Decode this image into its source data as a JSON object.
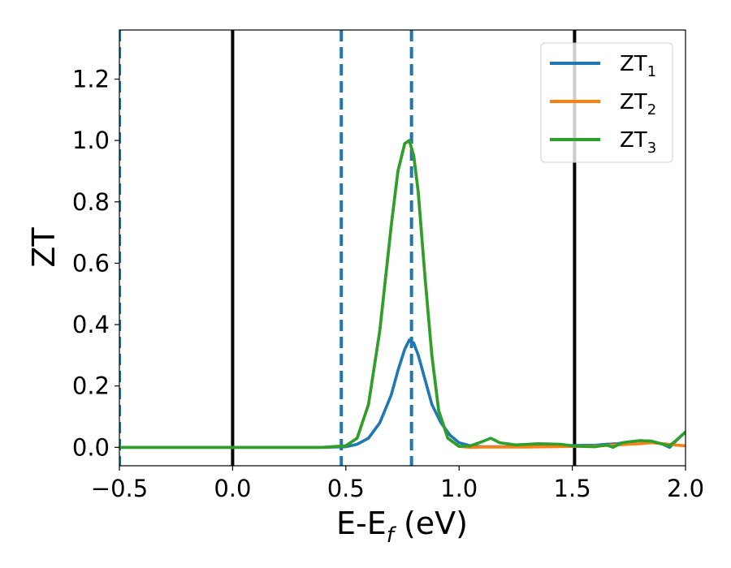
{
  "chart_data": {
    "type": "line",
    "xlabel": "E-E",
    "xlabel_sub": "f",
    "xlabel_unit": " (eV)",
    "ylabel": "ZT",
    "xlim": [
      -0.5,
      2.0
    ],
    "ylim": [
      -0.06,
      1.36
    ],
    "xticks": [
      -0.5,
      0.0,
      0.5,
      1.0,
      1.5,
      2.0
    ],
    "xtick_labels": [
      "−0.5",
      "0.0",
      "0.5",
      "1.0",
      "1.5",
      "2.0"
    ],
    "yticks": [
      0.0,
      0.2,
      0.4,
      0.6,
      0.8,
      1.0,
      1.2
    ],
    "ytick_labels": [
      "0.0",
      "0.2",
      "0.4",
      "0.6",
      "0.8",
      "1.0",
      "1.2"
    ],
    "legend_position": "top-right",
    "vlines": [
      {
        "x": -0.5,
        "style": "dashed",
        "color": "#1f77b4"
      },
      {
        "x": 0.0,
        "style": "solid",
        "color": "#000000"
      },
      {
        "x": 0.48,
        "style": "dashed",
        "color": "#1f77b4"
      },
      {
        "x": 0.79,
        "style": "dashed",
        "color": "#1f77b4"
      },
      {
        "x": 1.51,
        "style": "solid",
        "color": "#000000"
      }
    ],
    "series": [
      {
        "name": "ZT",
        "name_sub": "1",
        "color": "#1f77b4",
        "x": [
          -0.5,
          0.4,
          0.5,
          0.55,
          0.6,
          0.65,
          0.7,
          0.73,
          0.76,
          0.78,
          0.8,
          0.82,
          0.85,
          0.88,
          0.92,
          0.96,
          1.0,
          1.05,
          1.1,
          1.15,
          1.2,
          1.3,
          1.4,
          1.5,
          1.6,
          1.65,
          1.7,
          1.75,
          1.8,
          1.85,
          1.9,
          1.93,
          1.97,
          2.0
        ],
        "y": [
          0.0,
          0.0,
          0.002,
          0.01,
          0.03,
          0.08,
          0.17,
          0.25,
          0.32,
          0.35,
          0.34,
          0.3,
          0.22,
          0.14,
          0.08,
          0.04,
          0.015,
          0.005,
          0.002,
          0.002,
          0.002,
          0.003,
          0.005,
          0.006,
          0.007,
          0.01,
          0.012,
          0.018,
          0.022,
          0.02,
          0.01,
          0.0,
          0.03,
          0.05
        ]
      },
      {
        "name": "ZT",
        "name_sub": "2",
        "color": "#ff7f0e",
        "x": [
          -0.5,
          0.4,
          0.5,
          0.55,
          0.6,
          0.65,
          0.7,
          0.73,
          0.76,
          0.78,
          0.8,
          0.82,
          0.85,
          0.88,
          0.91,
          0.95,
          1.0,
          1.05,
          1.1,
          1.2,
          1.3,
          1.4,
          1.5,
          1.6,
          1.7,
          1.75,
          1.8,
          1.85,
          1.9,
          1.95,
          2.0
        ],
        "y": [
          0.0,
          0.0,
          0.005,
          0.03,
          0.14,
          0.38,
          0.72,
          0.9,
          0.99,
          1.0,
          0.95,
          0.83,
          0.55,
          0.3,
          0.12,
          0.03,
          0.003,
          0.0,
          0.001,
          0.001,
          0.001,
          0.002,
          0.003,
          0.004,
          0.008,
          0.01,
          0.012,
          0.015,
          0.012,
          0.008,
          0.005
        ]
      },
      {
        "name": "ZT",
        "name_sub": "3",
        "color": "#2ca02c",
        "x": [
          -0.5,
          0.4,
          0.5,
          0.55,
          0.6,
          0.65,
          0.7,
          0.73,
          0.76,
          0.78,
          0.8,
          0.82,
          0.85,
          0.88,
          0.91,
          0.95,
          1.0,
          1.05,
          1.1,
          1.14,
          1.18,
          1.25,
          1.35,
          1.45,
          1.5,
          1.55,
          1.6,
          1.65,
          1.68,
          1.72,
          1.75,
          1.8,
          1.85,
          1.9,
          1.93,
          1.97,
          2.0
        ],
        "y": [
          0.0,
          0.0,
          0.005,
          0.03,
          0.14,
          0.38,
          0.72,
          0.9,
          0.99,
          1.0,
          0.95,
          0.83,
          0.55,
          0.3,
          0.12,
          0.03,
          0.003,
          0.005,
          0.018,
          0.03,
          0.015,
          0.008,
          0.012,
          0.01,
          0.005,
          0.003,
          0.002,
          0.008,
          0.0,
          0.015,
          0.018,
          0.022,
          0.02,
          0.01,
          0.005,
          0.03,
          0.05
        ]
      }
    ]
  }
}
